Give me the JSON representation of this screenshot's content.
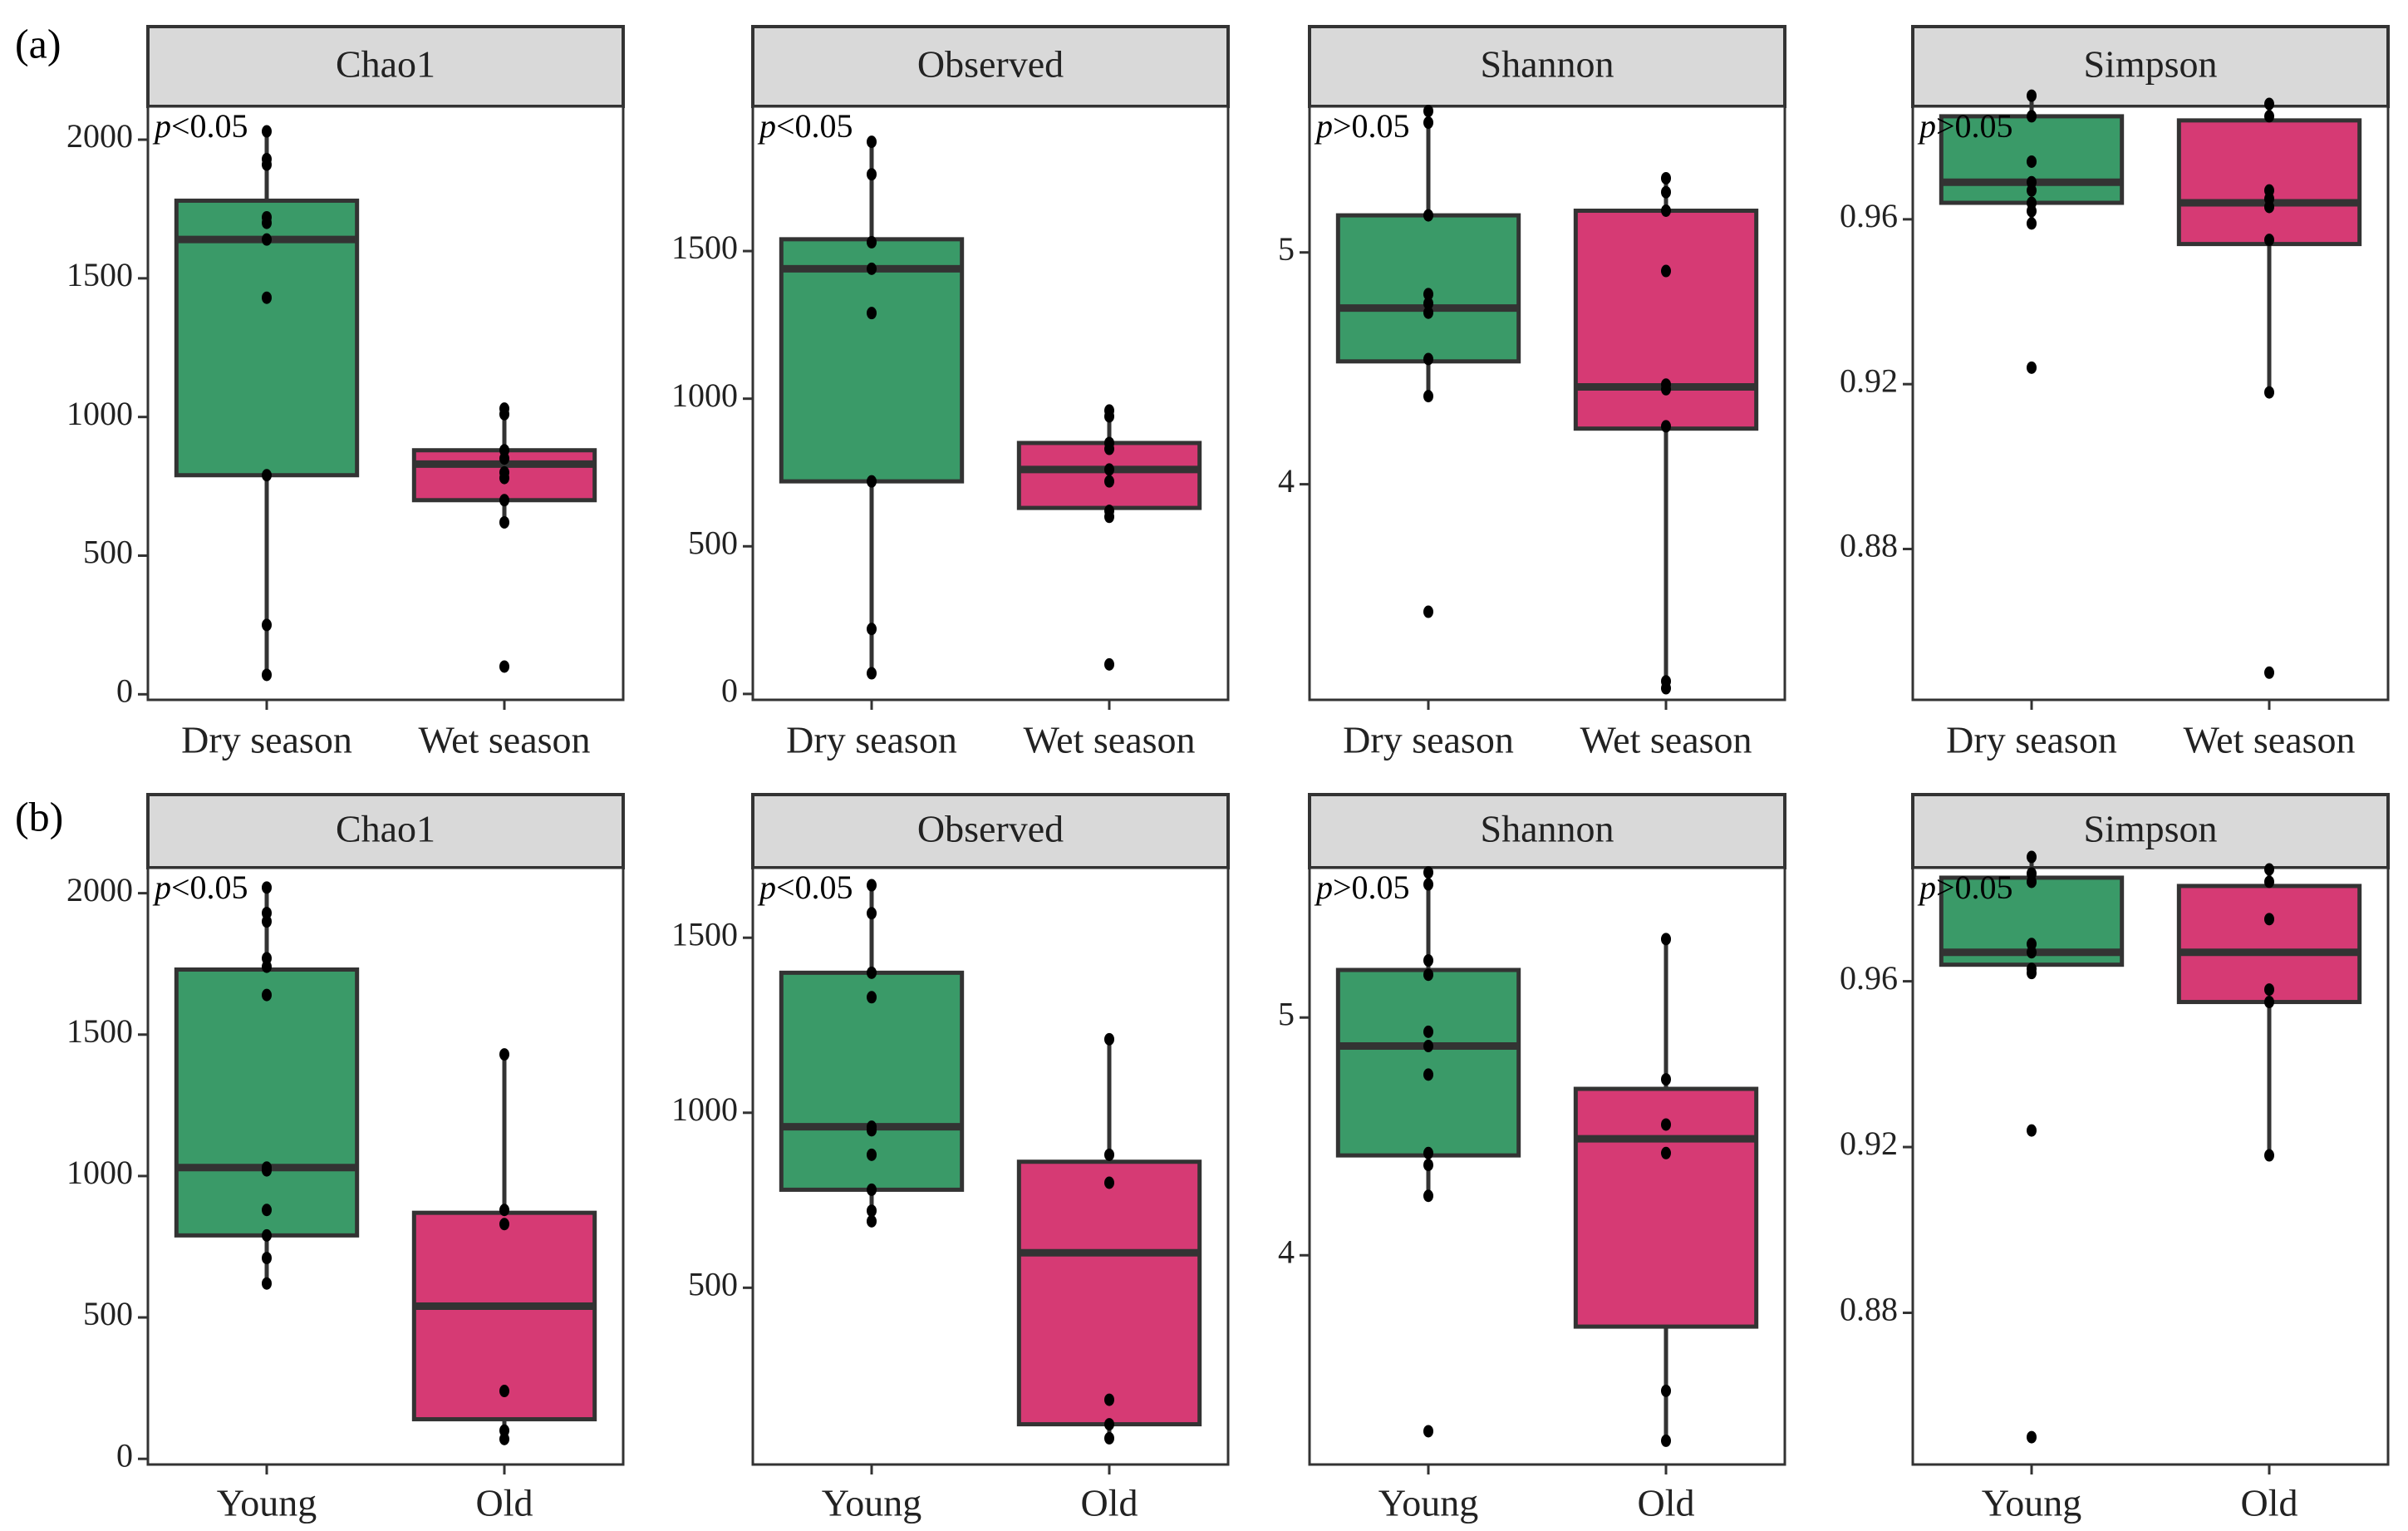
{
  "rows": [
    {
      "letter": "(a)",
      "categories": [
        "Dry season",
        "Wet season"
      ]
    },
    {
      "letter": "(b)",
      "categories": [
        "Young",
        "Old"
      ]
    }
  ],
  "colors": {
    "group1": "#3a9a68",
    "group2": "#d63a74",
    "outline": "#333333",
    "strip": "#d9d9d9",
    "point": "#000000"
  },
  "chart_data": [
    {
      "type": "box",
      "title": "Chao1",
      "row": "a",
      "p_label": "p<0.05",
      "categories": [
        "Dry season",
        "Wet season"
      ],
      "ylim": [
        -20,
        2120
      ],
      "yticks": [
        0,
        500,
        1000,
        1500,
        2000
      ],
      "boxes": [
        {
          "category": "Dry season",
          "whisker_low": 70,
          "q1": 790,
          "median": 1640,
          "q3": 1780,
          "whisker_high": 2030
        },
        {
          "category": "Wet season",
          "whisker_low": 620,
          "q1": 700,
          "median": 830,
          "q3": 880,
          "whisker_high": 1030
        }
      ],
      "points": [
        [
          2030,
          1930,
          1910,
          1720,
          1700,
          1640,
          1430,
          790,
          250,
          70
        ],
        [
          1030,
          1010,
          880,
          850,
          800,
          780,
          700,
          620,
          100
        ]
      ]
    },
    {
      "type": "box",
      "title": "Observed",
      "row": "a",
      "p_label": "p<0.05",
      "categories": [
        "Dry season",
        "Wet season"
      ],
      "ylim": [
        -20,
        1990
      ],
      "yticks": [
        0,
        500,
        1000,
        1500
      ],
      "boxes": [
        {
          "category": "Dry season",
          "whisker_low": 70,
          "q1": 720,
          "median": 1440,
          "q3": 1540,
          "whisker_high": 1870
        },
        {
          "category": "Wet season",
          "whisker_low": 600,
          "q1": 630,
          "median": 760,
          "q3": 850,
          "whisker_high": 960
        }
      ],
      "points": [
        [
          1870,
          1760,
          1530,
          1440,
          1290,
          720,
          220,
          70
        ],
        [
          960,
          940,
          850,
          830,
          760,
          720,
          620,
          600,
          100
        ]
      ]
    },
    {
      "type": "box",
      "title": "Shannon",
      "row": "a",
      "p_label": "p>0.05",
      "categories": [
        "Dry season",
        "Wet season"
      ],
      "ylim": [
        3.07,
        5.63
      ],
      "yticks": [
        4,
        5
      ],
      "boxes": [
        {
          "category": "Dry season",
          "whisker_low": 4.38,
          "q1": 4.53,
          "median": 4.76,
          "q3": 5.16,
          "whisker_high": 5.61
        },
        {
          "category": "Wet season",
          "whisker_low": 3.12,
          "q1": 4.24,
          "median": 4.42,
          "q3": 5.18,
          "whisker_high": 5.32
        }
      ],
      "points": [
        [
          5.61,
          5.56,
          5.16,
          4.82,
          4.78,
          4.74,
          4.54,
          4.38,
          3.45
        ],
        [
          5.32,
          5.26,
          5.18,
          4.92,
          4.43,
          4.41,
          4.25,
          3.15,
          3.12
        ]
      ]
    },
    {
      "type": "box",
      "title": "Simpson",
      "row": "a",
      "p_label": "p>0.05",
      "categories": [
        "Dry season",
        "Wet season"
      ],
      "ylim": [
        0.8434,
        0.9874
      ],
      "yticks": [
        0.88,
        0.92,
        0.96
      ],
      "boxes": [
        {
          "category": "Dry season",
          "whisker_low": 0.959,
          "q1": 0.964,
          "median": 0.969,
          "q3": 0.985,
          "whisker_high": 0.99
        },
        {
          "category": "Wet season",
          "whisker_low": 0.918,
          "q1": 0.954,
          "median": 0.964,
          "q3": 0.984,
          "whisker_high": 0.988
        }
      ],
      "points": [
        [
          0.99,
          0.985,
          0.974,
          0.969,
          0.967,
          0.964,
          0.962,
          0.959,
          0.924
        ],
        [
          0.988,
          0.985,
          0.967,
          0.965,
          0.963,
          0.955,
          0.918,
          0.85
        ]
      ]
    },
    {
      "type": "box",
      "title": "Chao1",
      "row": "b",
      "p_label": "p<0.05",
      "categories": [
        "Young",
        "Old"
      ],
      "ylim": [
        -20,
        2090
      ],
      "yticks": [
        0,
        500,
        1000,
        1500,
        2000
      ],
      "boxes": [
        {
          "category": "Young",
          "whisker_low": 620,
          "q1": 790,
          "median": 1030,
          "q3": 1730,
          "whisker_high": 2020
        },
        {
          "category": "Old",
          "whisker_low": 70,
          "q1": 140,
          "median": 540,
          "q3": 870,
          "whisker_high": 1430
        }
      ],
      "points": [
        [
          2020,
          1930,
          1900,
          1770,
          1740,
          1640,
          1030,
          1020,
          880,
          790,
          710,
          620
        ],
        [
          1430,
          880,
          830,
          240,
          100,
          70
        ]
      ]
    },
    {
      "type": "box",
      "title": "Observed",
      "row": "b",
      "p_label": "p<0.05",
      "categories": [
        "Young",
        "Old"
      ],
      "ylim": [
        -5,
        1700
      ],
      "yticks": [
        500,
        1000,
        1500
      ],
      "boxes": [
        {
          "category": "Young",
          "whisker_low": 690,
          "q1": 780,
          "median": 960,
          "q3": 1400,
          "whisker_high": 1650
        },
        {
          "category": "Old",
          "whisker_low": 70,
          "q1": 110,
          "median": 600,
          "q3": 860,
          "whisker_high": 1210
        }
      ],
      "points": [
        [
          1650,
          1570,
          1400,
          1330,
          960,
          950,
          880,
          780,
          720,
          690
        ],
        [
          1210,
          880,
          800,
          180,
          110,
          70
        ]
      ]
    },
    {
      "type": "box",
      "title": "Shannon",
      "row": "b",
      "p_label": "p>0.05",
      "categories": [
        "Young",
        "Old"
      ],
      "ylim": [
        3.12,
        5.63
      ],
      "yticks": [
        4,
        5
      ],
      "boxes": [
        {
          "category": "Young",
          "whisker_low": 4.24,
          "q1": 4.42,
          "median": 4.88,
          "q3": 5.2,
          "whisker_high": 5.61
        },
        {
          "category": "Old",
          "whisker_low": 3.22,
          "q1": 3.7,
          "median": 4.49,
          "q3": 4.7,
          "whisker_high": 5.33
        }
      ],
      "points": [
        [
          5.61,
          5.56,
          5.24,
          5.18,
          4.94,
          4.88,
          4.76,
          4.43,
          4.38,
          4.25,
          3.26
        ],
        [
          5.33,
          4.74,
          4.55,
          4.43,
          3.43,
          3.22
        ]
      ]
    },
    {
      "type": "box",
      "title": "Simpson",
      "row": "b",
      "p_label": "p>0.05",
      "categories": [
        "Young",
        "Old"
      ],
      "ylim": [
        0.8434,
        0.9874
      ],
      "yticks": [
        0.88,
        0.92,
        0.96
      ],
      "boxes": [
        {
          "category": "Young",
          "whisker_low": 0.962,
          "q1": 0.964,
          "median": 0.967,
          "q3": 0.985,
          "whisker_high": 0.99
        },
        {
          "category": "Old",
          "whisker_low": 0.918,
          "q1": 0.955,
          "median": 0.967,
          "q3": 0.983,
          "whisker_high": 0.987
        }
      ],
      "points": [
        [
          0.99,
          0.986,
          0.984,
          0.969,
          0.967,
          0.963,
          0.962,
          0.924,
          0.85
        ],
        [
          0.987,
          0.984,
          0.975,
          0.958,
          0.955,
          0.918
        ]
      ]
    }
  ]
}
